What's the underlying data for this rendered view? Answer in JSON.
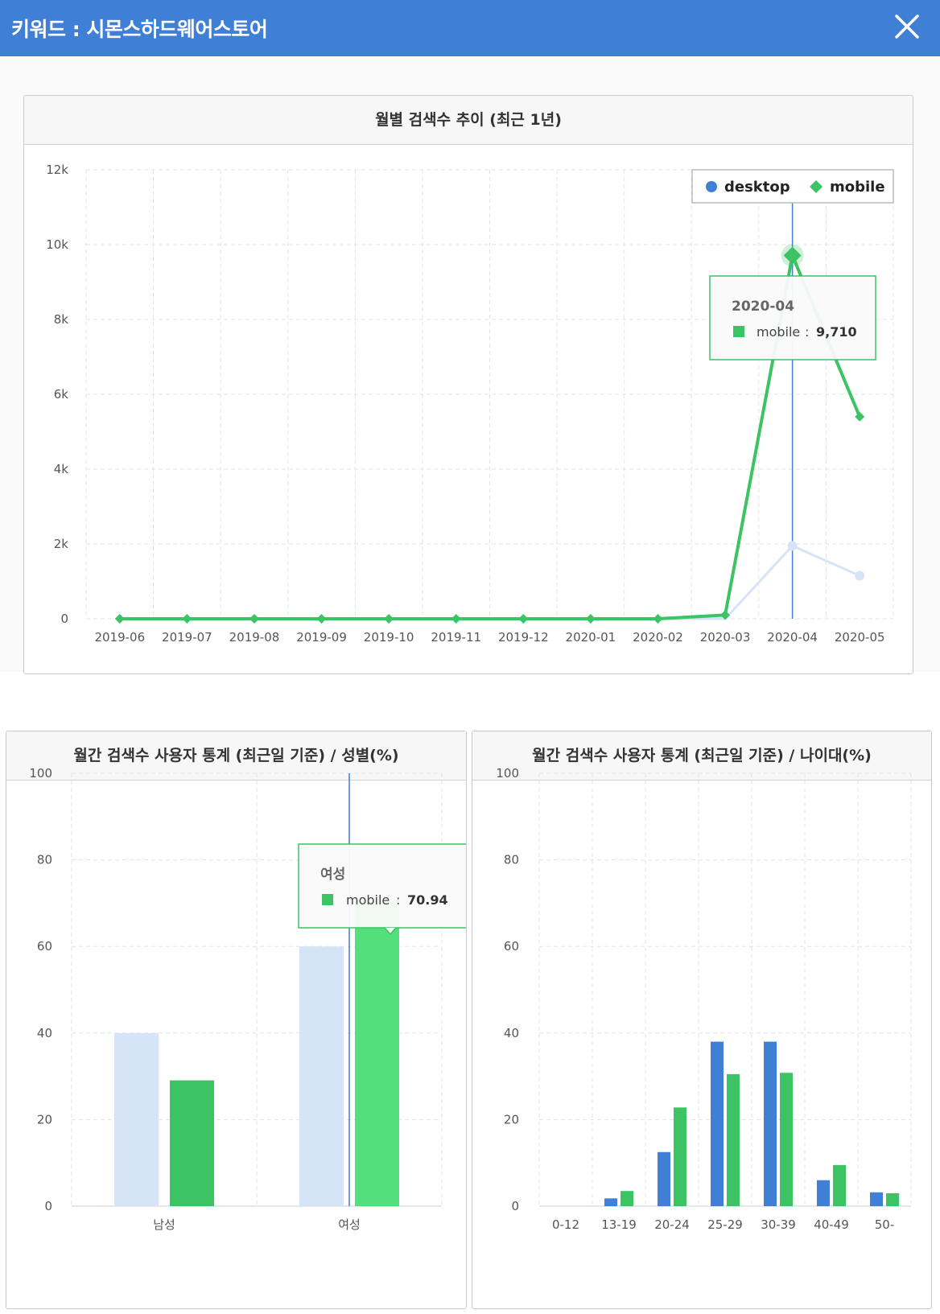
{
  "header": {
    "title": "키워드 : 시몬스하드웨어스토어"
  },
  "colors": {
    "header": "#3f7fd6",
    "desktop": "#3f7fd6",
    "mobile": "#3cc364",
    "desktop_faded": "#d6e4f7",
    "mobile_hover": "#54df7d"
  },
  "monthly": {
    "title": "월별 검색수 추이 (최근 1년)",
    "legend": {
      "desktop": "desktop",
      "mobile": "mobile"
    },
    "tooltip": {
      "title": "2020-04",
      "series": "mobile",
      "sep": ":",
      "value": "9,710"
    }
  },
  "gender": {
    "title": "월간 검색수 사용자 통계 (최근일 기준) / 성별(%)",
    "tooltip": {
      "title": "여성",
      "series": "mobile",
      "sep": ":",
      "value": "70.94"
    }
  },
  "age": {
    "title": "월간 검색수 사용자 통계 (최근일 기준) / 나이대(%)"
  },
  "chart_data": [
    {
      "type": "line",
      "title": "월별 검색수 추이 (최근 1년)",
      "x": [
        "2019-06",
        "2019-07",
        "2019-08",
        "2019-09",
        "2019-10",
        "2019-11",
        "2019-12",
        "2020-01",
        "2020-02",
        "2020-03",
        "2020-04",
        "2020-05"
      ],
      "series": [
        {
          "name": "desktop",
          "values": [
            0,
            0,
            0,
            0,
            0,
            0,
            0,
            0,
            0,
            0,
            1950,
            1150
          ]
        },
        {
          "name": "mobile",
          "values": [
            0,
            0,
            0,
            0,
            0,
            0,
            0,
            0,
            0,
            100,
            9710,
            5400
          ]
        }
      ],
      "ylim": [
        0,
        12000
      ],
      "yticks": [
        "0",
        "2k",
        "4k",
        "6k",
        "8k",
        "10k",
        "12k"
      ],
      "grid": true,
      "legend": "top-right"
    },
    {
      "type": "bar",
      "title": "월간 검색수 사용자 통계 (최근일 기준) / 성별(%)",
      "categories": [
        "남성",
        "여성"
      ],
      "series": [
        {
          "name": "desktop",
          "values": [
            40,
            60
          ]
        },
        {
          "name": "mobile",
          "values": [
            29.06,
            70.94
          ]
        }
      ],
      "ylim": [
        0,
        100
      ],
      "yticks": [
        "0",
        "20",
        "40",
        "60",
        "80",
        "100"
      ],
      "grid": true
    },
    {
      "type": "bar",
      "title": "월간 검색수 사용자 통계 (최근일 기준) / 나이대(%)",
      "categories": [
        "0-12",
        "13-19",
        "20-24",
        "25-29",
        "30-39",
        "40-49",
        "50-"
      ],
      "series": [
        {
          "name": "desktop",
          "values": [
            0,
            1.8,
            12.5,
            38,
            38,
            6,
            3.2
          ]
        },
        {
          "name": "mobile",
          "values": [
            0,
            3.5,
            22.8,
            30.5,
            30.8,
            9.5,
            3
          ]
        }
      ],
      "ylim": [
        0,
        100
      ],
      "yticks": [
        "0",
        "20",
        "40",
        "60",
        "80",
        "100"
      ],
      "grid": true
    }
  ]
}
